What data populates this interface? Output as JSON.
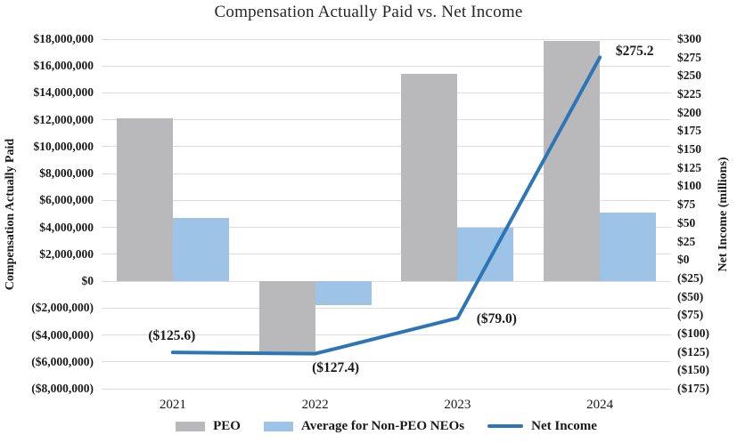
{
  "chart_data": {
    "type": "combo-bar-line",
    "title": "Compensation Actually Paid vs. Net Income",
    "categories": [
      "2021",
      "2022",
      "2023",
      "2024"
    ],
    "series": [
      {
        "name": "PEO",
        "type": "bar",
        "axis": "left",
        "color": "#b9b9bc",
        "values": [
          12100000,
          -5400000,
          15400000,
          17900000
        ]
      },
      {
        "name": "Average for Non-PEO NEOs",
        "type": "bar",
        "axis": "left",
        "color": "#9dc3e6",
        "values": [
          4700000,
          -1800000,
          4000000,
          5100000
        ]
      },
      {
        "name": "Net Income",
        "type": "line",
        "axis": "right",
        "color": "#2e75b6",
        "values": [
          -125.6,
          -127.4,
          -79.0,
          275.2
        ],
        "point_labels": [
          "($125.6)",
          "($127.4)",
          "($79.0)",
          "$275.2"
        ]
      }
    ],
    "left_axis": {
      "title": "Compensation Actually Paid",
      "min": -8000000,
      "max": 18000000,
      "tick_step": 2000000,
      "tick_labels": [
        "$18,000,000",
        "$16,000,000",
        "$14,000,000",
        "$12,000,000",
        "$10,000,000",
        "$8,000,000",
        "$6,000,000",
        "$4,000,000",
        "$2,000,000",
        "$0",
        "($2,000,000)",
        "($4,000,000)",
        "($6,000,000)",
        "($8,000,000)"
      ]
    },
    "right_axis": {
      "title": "Net Income (millions)",
      "min": -175,
      "max": 300,
      "tick_step": 25,
      "tick_labels": [
        "$300",
        "$275",
        "$250",
        "$225",
        "$200",
        "$175",
        "$150",
        "$125",
        "$100",
        "$75",
        "$50",
        "$25",
        "$0",
        "($25)",
        "($50)",
        "($75)",
        "($100)",
        "($125)",
        "($150)",
        "($175)"
      ]
    },
    "grid": true,
    "legend_position": "bottom",
    "colors": {
      "gridline": "#dcdcdc",
      "text": "#1a1a1a",
      "title": "#262626"
    }
  }
}
